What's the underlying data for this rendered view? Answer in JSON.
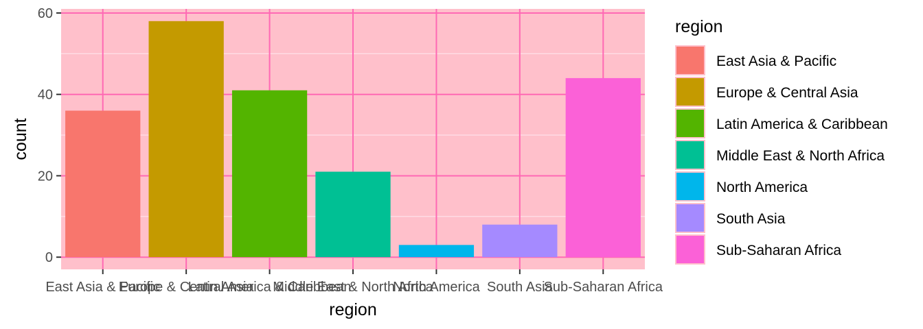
{
  "chart_data": {
    "type": "bar",
    "categories": [
      "East Asia & Pacific",
      "Europe & Central Asia",
      "Latin America & Caribbean",
      "Middle East & North Africa",
      "North America",
      "South Asia",
      "Sub-Saharan Africa"
    ],
    "values": [
      36,
      58,
      41,
      21,
      3,
      8,
      44
    ],
    "colors": [
      "#F8766D",
      "#C49A00",
      "#53B400",
      "#00C094",
      "#00B6EB",
      "#A58AFF",
      "#FB61D7"
    ],
    "xlabel": "region",
    "ylabel": "count",
    "ylim": [
      -3,
      61
    ],
    "yticks": [
      0,
      20,
      40,
      60
    ],
    "grid": true,
    "panel_background": "#FFC0CB",
    "major_grid_color": "#FF69B4",
    "minor_grid_color": "#FFE4EC",
    "legend": {
      "title": "region",
      "position": "right"
    }
  }
}
